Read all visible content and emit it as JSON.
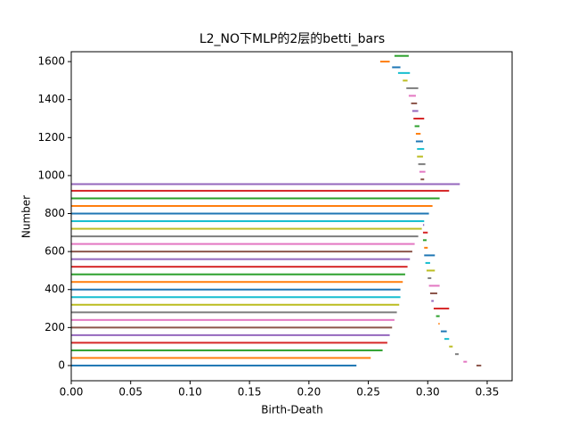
{
  "chart_data": {
    "type": "barcode",
    "title": "L2_NO下MLP的2层的betti_bars",
    "x_label": "Birth-Death",
    "y_label": "Number",
    "xlim": [
      0,
      0.371
    ],
    "ylim": [
      -80,
      1652
    ],
    "xticks": [
      {
        "value": 0,
        "label": "0.00"
      },
      {
        "value": 0.05,
        "label": "0.05"
      },
      {
        "value": 0.1,
        "label": "0.10"
      },
      {
        "value": 0.15,
        "label": "0.15"
      },
      {
        "value": 0.2,
        "label": "0.20"
      },
      {
        "value": 0.25,
        "label": "0.25"
      },
      {
        "value": 0.3,
        "label": "0.30"
      },
      {
        "value": 0.35,
        "label": "0.35"
      }
    ],
    "yticks": [
      0,
      200,
      400,
      600,
      800,
      1000,
      1200,
      1400,
      1600
    ],
    "colors": [
      "#1f77b4",
      "#ff7f0e",
      "#2ca02c",
      "#d62728",
      "#9467bd",
      "#8c564b",
      "#e377c2",
      "#7f7f7f",
      "#bcbd22",
      "#17becf"
    ],
    "bars": {
      "y": [
        0,
        40,
        80,
        120,
        160,
        200,
        240,
        280,
        320,
        360,
        400,
        440,
        480,
        520,
        560,
        600,
        640,
        680,
        720,
        760,
        800,
        840,
        880,
        920,
        955,
        0,
        20,
        60,
        100,
        140,
        180,
        220,
        260,
        300,
        340,
        380,
        420,
        460,
        500,
        540,
        580,
        620,
        660,
        700,
        740,
        980,
        1020,
        1060,
        1100,
        1140,
        1180,
        1220,
        1260,
        1300,
        1340,
        1380,
        1420,
        1460,
        1500,
        1540,
        1570,
        1600,
        1630
      ],
      "start": [
        0,
        0,
        0,
        0,
        0,
        0,
        0,
        0,
        0,
        0,
        0,
        0,
        0,
        0,
        0,
        0,
        0,
        0,
        0,
        0,
        0,
        0,
        0,
        0,
        0,
        0.341,
        0.33,
        0.323,
        0.318,
        0.314,
        0.311,
        0.309,
        0.307,
        0.305,
        0.303,
        0.302,
        0.301,
        0.3,
        0.299,
        0.298,
        0.297,
        0.297,
        0.296,
        0.296,
        0.296,
        0.294,
        0.293,
        0.292,
        0.291,
        0.291,
        0.29,
        0.29,
        0.289,
        0.288,
        0.287,
        0.286,
        0.284,
        0.282,
        0.279,
        0.275,
        0.27,
        0.26,
        0.272
      ],
      "end": [
        0.24,
        0.252,
        0.262,
        0.266,
        0.268,
        0.27,
        0.272,
        0.274,
        0.276,
        0.277,
        0.277,
        0.279,
        0.281,
        0.283,
        0.285,
        0.287,
        0.289,
        0.292,
        0.295,
        0.297,
        0.301,
        0.304,
        0.31,
        0.318,
        0.327,
        0.345,
        0.333,
        0.326,
        0.321,
        0.318,
        0.316,
        0.31,
        0.31,
        0.318,
        0.305,
        0.308,
        0.31,
        0.303,
        0.306,
        0.302,
        0.306,
        0.3,
        0.299,
        0.3,
        0.297,
        0.297,
        0.298,
        0.298,
        0.296,
        0.297,
        0.296,
        0.294,
        0.293,
        0.297,
        0.292,
        0.291,
        0.29,
        0.292,
        0.283,
        0.285,
        0.277,
        0.268,
        0.284
      ]
    }
  }
}
